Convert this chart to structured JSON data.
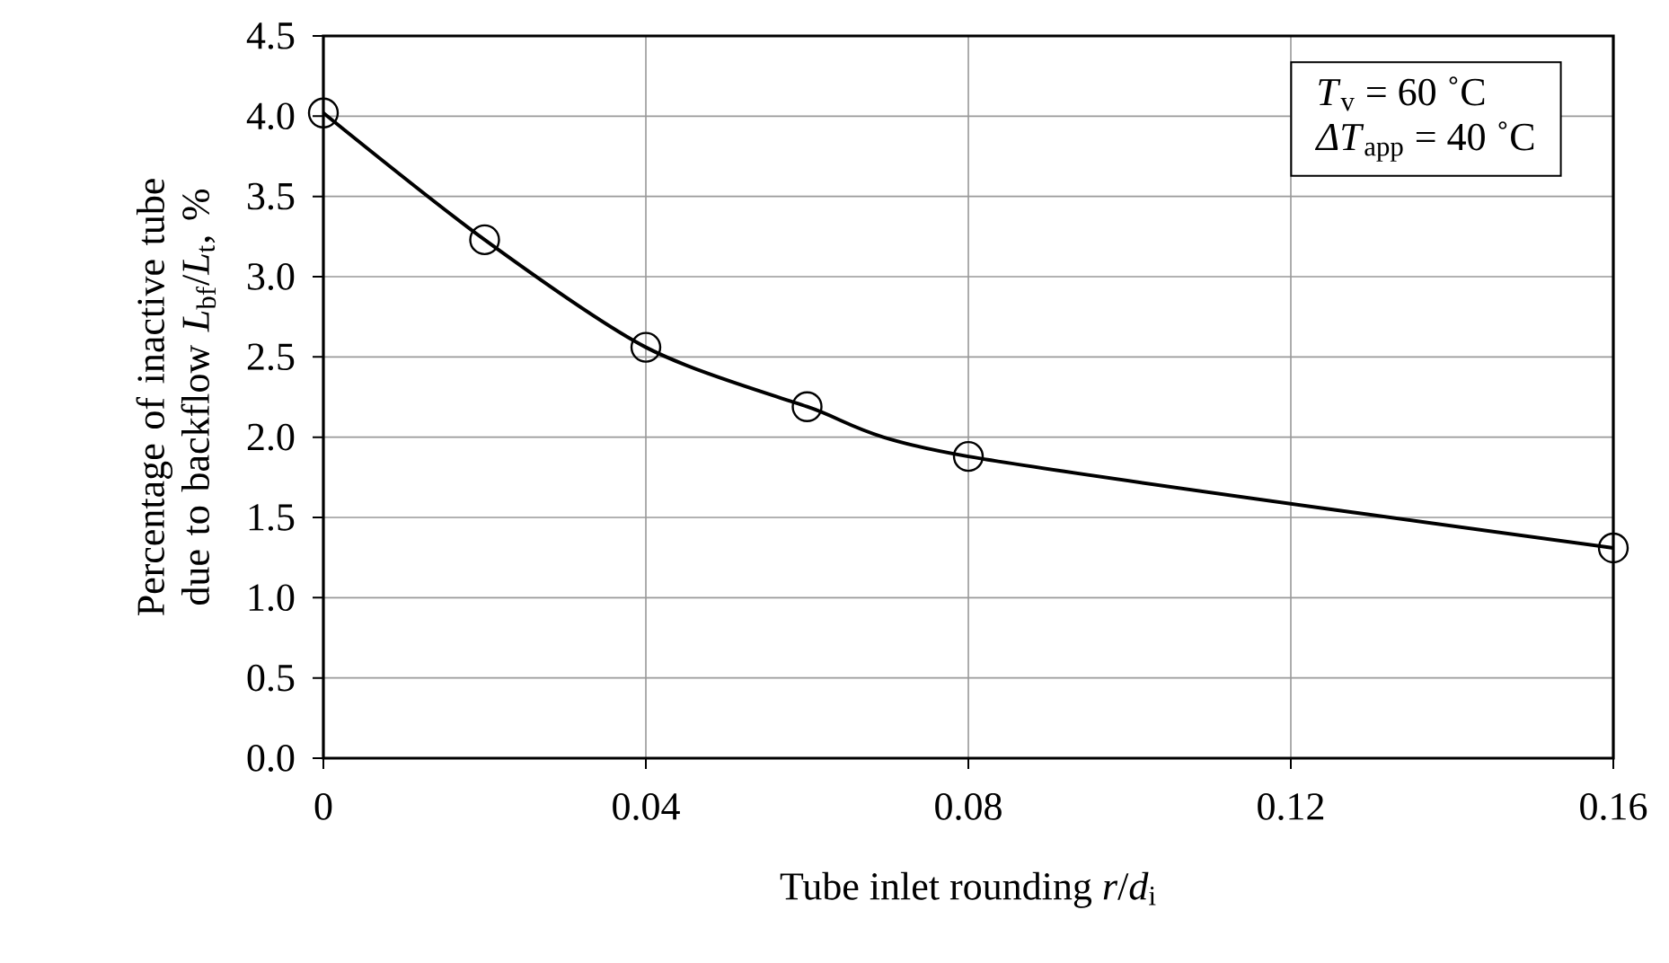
{
  "chart_data": {
    "type": "line",
    "xlabel": "Tube inlet rounding *r*/*d*$_{i}$",
    "ylabel": "Percentage of inactive tube due to backflow *L*$_{bf}$/*L*$_{t}$, %",
    "annotations": [
      "*T*$_{v}$ = 60 ˚C",
      "*ΔT*$_{app}$ = 40 ˚C"
    ],
    "x": [
      0,
      0.02,
      0.04,
      0.06,
      0.08,
      0.16
    ],
    "series": [
      {
        "color": "#000000",
        "values": [
          4.02,
          3.23,
          2.56,
          2.19,
          1.88,
          1.31
        ]
      }
    ],
    "xlim": [
      0,
      0.16
    ],
    "ylim": [
      0,
      4.5
    ],
    "xticks": [
      0,
      0.04,
      0.08,
      0.12,
      0.16
    ],
    "yticks": [
      {
        "value": 0,
        "label": "0.0"
      },
      {
        "value": 0.5,
        "label": "0.5"
      },
      {
        "value": 1,
        "label": "1.0"
      },
      {
        "value": 1.5,
        "label": "1.5"
      },
      {
        "value": 2,
        "label": "2.0"
      },
      {
        "value": 2.5,
        "label": "2.5"
      },
      {
        "value": 3,
        "label": "3.0"
      },
      {
        "value": 3.5,
        "label": "3.5"
      },
      {
        "value": 4,
        "label": "4.0"
      },
      {
        "value": 4.5,
        "label": "4.5"
      }
    ],
    "grid": true,
    "marker": "circle",
    "line_style": "solid",
    "legend": false
  }
}
